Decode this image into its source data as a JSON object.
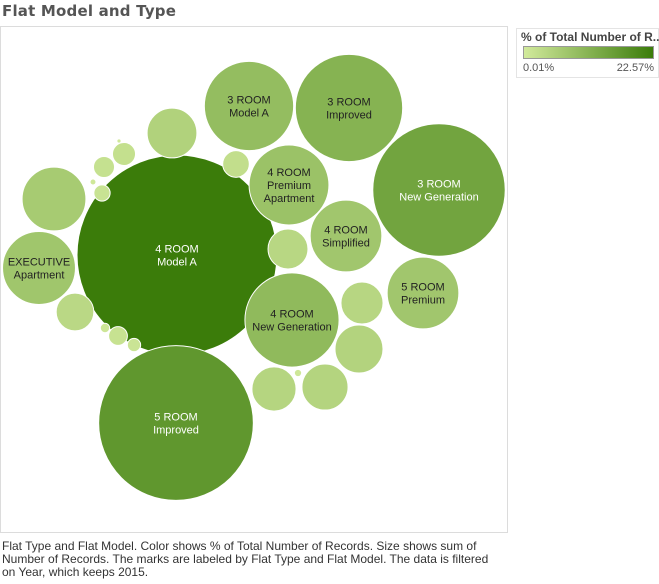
{
  "title": "Flat Model and Type",
  "legend": {
    "title": "% of Total Number of R..",
    "min_label": "0.01%",
    "max_label": "22.57%",
    "color_min": "#d2ea9c",
    "color_max": "#3b7c0a"
  },
  "caption": "Flat Type and Flat Model.  Color shows % of Total Number of Records.  Size shows sum of Number of Records.  The marks are labeled by Flat Type and Flat Model. The data is filtered on Year, which keeps 2015.",
  "chart_data": {
    "type": "packed-bubble",
    "size_measure": "Number of Records",
    "color_measure": "% of Total Number of Records",
    "bubbles": [
      {
        "label": "4 ROOM|Model A",
        "share": 22.57
      },
      {
        "label": "5 ROOM|Improved",
        "share": 13.5
      },
      {
        "label": "3 ROOM|New Generation",
        "share": 9.9
      },
      {
        "label": "3 ROOM|Improved",
        "share": 6.5
      },
      {
        "label": "4 ROOM|New Generation",
        "share": 5.0
      },
      {
        "label": "3 ROOM|Model A",
        "share": 4.5
      },
      {
        "label": "4 ROOM|Premium|Apartment",
        "share": 3.6
      },
      {
        "label": "EXECUTIVE|Apartment",
        "share": 3.0
      },
      {
        "label": "4 ROOM|Simplified",
        "share": 2.9
      },
      {
        "label": "5 ROOM|Premium",
        "share": 2.9
      },
      {
        "label": "",
        "share": 2.3
      },
      {
        "label": "",
        "share": 1.4
      },
      {
        "label": "",
        "share": 1.3
      },
      {
        "label": "",
        "share": 1.2
      },
      {
        "label": "",
        "share": 1.1
      },
      {
        "label": "",
        "share": 1.0
      },
      {
        "label": "",
        "share": 0.9
      },
      {
        "label": "",
        "share": 0.8
      },
      {
        "label": "",
        "share": 0.4
      },
      {
        "label": "",
        "share": 0.3
      },
      {
        "label": "",
        "share": 0.25
      },
      {
        "label": "",
        "share": 0.2
      },
      {
        "label": "",
        "share": 0.15
      },
      {
        "label": "",
        "share": 0.1
      },
      {
        "label": "",
        "share": 0.05
      },
      {
        "label": "",
        "share": 0.03
      },
      {
        "label": "",
        "share": 0.02
      },
      {
        "label": "",
        "share": 0.01
      }
    ]
  }
}
